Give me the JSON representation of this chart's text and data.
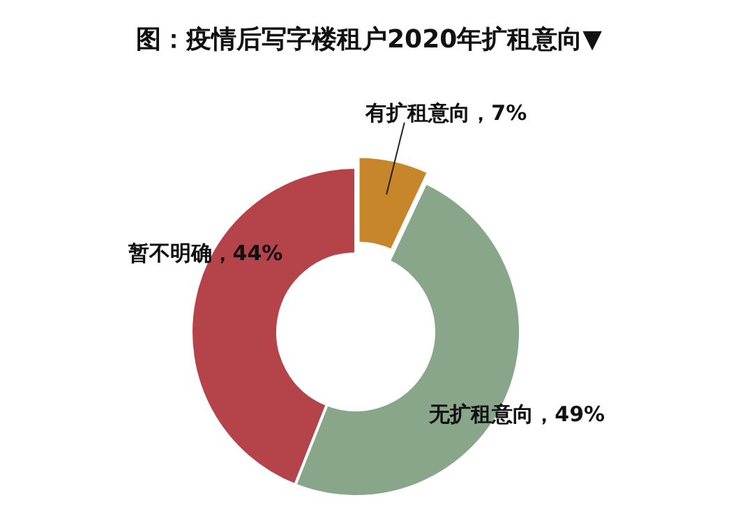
{
  "chart_data": {
    "type": "donut",
    "title": "图：疫情后写字楼租户2020年扩租意向▼",
    "categories": [
      "有扩租意向",
      "无扩租意向",
      "暂不明确"
    ],
    "values": [
      7,
      49,
      44
    ],
    "value_labels": [
      "7%",
      "49%",
      "44%"
    ],
    "colors": [
      "#c8862a",
      "#8aa68a",
      "#b5434a"
    ]
  }
}
